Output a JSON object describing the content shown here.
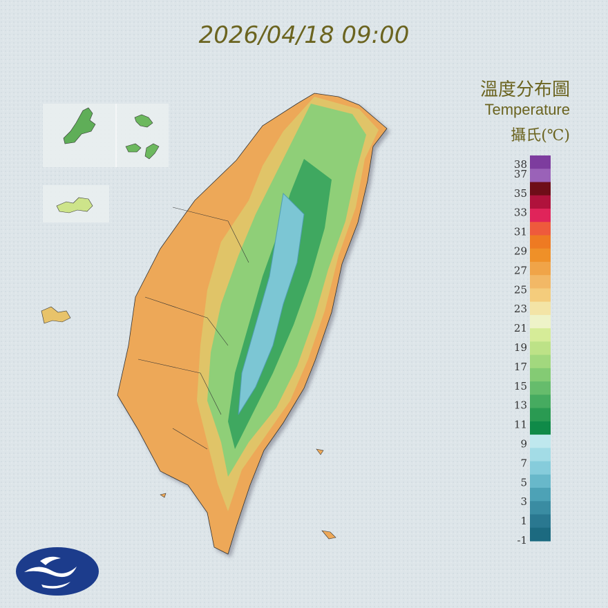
{
  "header": {
    "timestamp": "2026/04/18 09:00"
  },
  "legend": {
    "title_zh": "溫度分布圖",
    "title_en": "Temperature",
    "unit": "攝氏(℃)",
    "labels": [
      38,
      37,
      35,
      33,
      31,
      29,
      27,
      25,
      23,
      21,
      19,
      17,
      15,
      13,
      11,
      9,
      7,
      5,
      3,
      1,
      -1
    ],
    "colors": [
      "#7d3c9e",
      "#9a62b8",
      "#6e0d18",
      "#b0123c",
      "#e0245a",
      "#ee5a3c",
      "#ee7a22",
      "#ef9028",
      "#f0a448",
      "#f2b866",
      "#f4cc7c",
      "#f3e4a6",
      "#eef3c8",
      "#d6ec98",
      "#bde287",
      "#a2d87e",
      "#84cb74",
      "#66bc6c",
      "#46ab60",
      "#2a9a52",
      "#0f8a48",
      "#bfe8ee",
      "#a3dce6",
      "#86ccdb",
      "#68b8ca",
      "#4da2b6",
      "#3a8ca2",
      "#2a7890",
      "#1c6a80"
    ]
  }
}
